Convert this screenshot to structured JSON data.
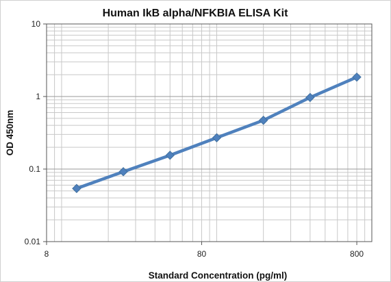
{
  "chart_data": {
    "type": "line",
    "title": "Human IkB alpha/NFKBIA ELISA Kit",
    "xlabel": "Standard Concentration (pg/ml)",
    "ylabel": "OD 450nm",
    "x_scale": "log",
    "y_scale": "log",
    "xlim": [
      8,
      1000
    ],
    "ylim": [
      0.01,
      10
    ],
    "x_ticks": [
      "8",
      "80",
      "800"
    ],
    "y_ticks": [
      "10",
      "1",
      "0.1",
      "0.01"
    ],
    "grid": true,
    "legend": "none",
    "series": [
      {
        "color": "#4f81bd",
        "marker": "diamond",
        "x": [
          12.5,
          25,
          50,
          100,
          200,
          400,
          800
        ],
        "y": [
          0.054,
          0.092,
          0.155,
          0.27,
          0.47,
          0.97,
          1.85
        ]
      }
    ]
  }
}
